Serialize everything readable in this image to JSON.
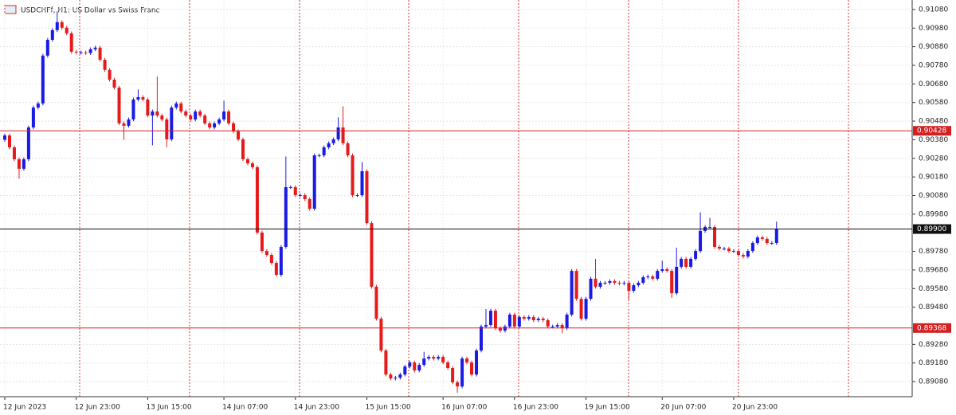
{
  "chart_data": {
    "type": "candlestick",
    "title": "USDCHFf, H1:  US Dollar vs Swiss Franc",
    "categories": [
      "12 Jun 2023",
      null,
      null,
      null,
      null,
      null,
      null,
      null,
      null,
      null,
      null,
      null,
      null,
      null,
      null,
      "12 Jun 23:00",
      null,
      null,
      null,
      null,
      null,
      null,
      null,
      null,
      null,
      null,
      null,
      null,
      null,
      null,
      "13 Jun 15:00",
      null,
      null,
      null,
      null,
      null,
      null,
      null,
      null,
      null,
      null,
      null,
      null,
      null,
      null,
      null,
      "14 Jun 07:00",
      null,
      null,
      null,
      null,
      null,
      null,
      null,
      null,
      null,
      null,
      null,
      null,
      null,
      null,
      "14 Jun 23:00",
      null,
      null,
      null,
      null,
      null,
      null,
      null,
      null,
      null,
      null,
      null,
      null,
      null,
      null,
      "15 Jun 15:00",
      null,
      null,
      null,
      null,
      null,
      null,
      null,
      null,
      null,
      null,
      null,
      null,
      null,
      null,
      null,
      "16 Jun 07:00",
      null,
      null,
      null,
      null,
      null,
      null,
      null,
      null,
      null,
      null,
      null,
      null,
      null,
      null,
      "16 Jun 23:00",
      null,
      null,
      null,
      null,
      null,
      null,
      null,
      null,
      null,
      null,
      null,
      null,
      null,
      null,
      "19 Jun 15:00",
      null,
      null,
      null,
      null,
      null,
      null,
      null,
      null,
      null,
      null,
      null,
      null,
      null,
      null,
      null,
      "20 Jun 07:00",
      null,
      null,
      null,
      null,
      null,
      null,
      null,
      null,
      null,
      null,
      null,
      null,
      null,
      null,
      "20 Jun 23:00",
      null,
      null,
      null,
      null,
      null,
      null,
      null,
      null,
      null
    ],
    "open": [
      0.9038,
      0.90403,
      0.90339,
      0.90275,
      0.90224,
      0.90275,
      0.90446,
      0.90553,
      0.90575,
      0.90832,
      0.90917,
      0.90969,
      0.91012,
      0.90982,
      0.90952,
      0.90853,
      0.90849,
      0.90849,
      0.90846,
      0.90866,
      0.90875,
      0.9081,
      0.90755,
      0.90703,
      0.9066,
      0.90468,
      0.90455,
      0.90489,
      0.90596,
      0.90609,
      0.90596,
      0.9051,
      0.90532,
      0.9051,
      0.90489,
      0.90382,
      0.90553,
      0.90575,
      0.90532,
      0.9051,
      0.90489,
      0.90532,
      0.9051,
      0.90468,
      0.90446,
      0.90468,
      0.90489,
      0.90532,
      0.90468,
      0.90425,
      0.90382,
      0.90275,
      0.90253,
      0.90232,
      0.89881,
      0.89782,
      0.89761,
      0.89718,
      0.89654,
      0.89804,
      0.90125,
      0.90125,
      0.90082,
      0.90082,
      0.90061,
      0.90009,
      0.90296,
      0.90296,
      0.90339,
      0.90361,
      0.90382,
      0.90446,
      0.90361,
      0.90296,
      0.90082,
      0.90082,
      0.90211,
      0.89932,
      0.8959,
      0.89418,
      0.89247,
      0.89118,
      0.89097,
      0.89101,
      0.89118,
      0.89161,
      0.89183,
      0.8914,
      0.8917,
      0.89204,
      0.89213,
      0.89204,
      0.89213,
      0.89183,
      0.89153,
      0.89076,
      0.89054,
      0.89204,
      0.89183,
      0.89118,
      0.89247,
      0.89376,
      0.89384,
      0.89461,
      0.89367,
      0.89354,
      0.89376,
      0.8944,
      0.89376,
      0.89427,
      0.89418,
      0.89427,
      0.8941,
      0.89418,
      0.8941,
      0.89376,
      0.89376,
      0.89384,
      0.89367,
      0.8944,
      0.89675,
      0.89525,
      0.89418,
      0.89525,
      0.89633,
      0.8959,
      0.89611,
      0.89611,
      0.8962,
      0.89611,
      0.89607,
      0.89611,
      0.89568,
      0.89598,
      0.89611,
      0.89641,
      0.89645,
      0.89633,
      0.89675,
      0.89684,
      0.89675,
      0.89555,
      0.89697,
      0.8974,
      0.89697,
      0.8974,
      0.89782,
      0.8989,
      0.89911,
      0.89911,
      0.89804,
      0.89795,
      0.89795,
      0.89782,
      0.89782,
      0.89761,
      0.89752,
      0.89782,
      0.89825,
      0.89855,
      0.89847,
      0.89825,
      0.89825
    ],
    "high": [
      0.90413,
      0.90413,
      0.90349,
      0.90285,
      0.90285,
      0.90456,
      0.90563,
      0.90585,
      0.90842,
      0.90927,
      0.90979,
      0.9107,
      0.91022,
      0.90992,
      0.90962,
      0.90863,
      0.90859,
      0.90859,
      0.90876,
      0.90885,
      0.90885,
      0.9082,
      0.90765,
      0.90713,
      0.9067,
      0.90478,
      0.90499,
      0.90606,
      0.9065,
      0.90619,
      0.90606,
      0.90542,
      0.9072,
      0.9052,
      0.90499,
      0.90563,
      0.90585,
      0.90585,
      0.90542,
      0.9052,
      0.90542,
      0.90542,
      0.9052,
      0.90478,
      0.90478,
      0.90499,
      0.9059,
      0.90542,
      0.90478,
      0.90435,
      0.90392,
      0.90285,
      0.90263,
      0.90242,
      0.89891,
      0.89792,
      0.89771,
      0.89728,
      0.89814,
      0.9029,
      0.90135,
      0.90135,
      0.90092,
      0.90092,
      0.90071,
      0.90306,
      0.90306,
      0.90349,
      0.90371,
      0.90392,
      0.905,
      0.9056,
      0.90371,
      0.90306,
      0.90092,
      0.9026,
      0.90221,
      0.89942,
      0.896,
      0.89428,
      0.89257,
      0.89128,
      0.89111,
      0.89128,
      0.89171,
      0.89193,
      0.89193,
      0.8918,
      0.8924,
      0.89223,
      0.89223,
      0.89223,
      0.89223,
      0.89193,
      0.89163,
      0.89086,
      0.89214,
      0.89214,
      0.89193,
      0.89257,
      0.89386,
      0.8947,
      0.89471,
      0.89471,
      0.89377,
      0.89386,
      0.8945,
      0.8945,
      0.89437,
      0.89437,
      0.89437,
      0.89437,
      0.89428,
      0.89428,
      0.8942,
      0.89386,
      0.89394,
      0.89394,
      0.8945,
      0.89685,
      0.89685,
      0.89535,
      0.89535,
      0.89643,
      0.8974,
      0.89621,
      0.89621,
      0.8963,
      0.8963,
      0.89621,
      0.89621,
      0.89621,
      0.89608,
      0.89621,
      0.89651,
      0.89655,
      0.89655,
      0.89685,
      0.8973,
      0.89694,
      0.89685,
      0.898,
      0.8975,
      0.8975,
      0.8975,
      0.89792,
      0.8999,
      0.89921,
      0.8996,
      0.89921,
      0.89814,
      0.89805,
      0.89805,
      0.89792,
      0.89792,
      0.89771,
      0.89792,
      0.89835,
      0.89865,
      0.89865,
      0.89857,
      0.89835,
      0.8994
    ],
    "low": [
      0.9037,
      0.90329,
      0.90265,
      0.9017,
      0.90214,
      0.90265,
      0.90436,
      0.90543,
      0.90565,
      0.90822,
      0.90907,
      0.90959,
      0.90972,
      0.90942,
      0.90843,
      0.90839,
      0.90839,
      0.90836,
      0.90836,
      0.90856,
      0.908,
      0.90745,
      0.90693,
      0.9065,
      0.90458,
      0.9038,
      0.90445,
      0.90479,
      0.90586,
      0.90586,
      0.905,
      0.9035,
      0.905,
      0.90479,
      0.9034,
      0.90372,
      0.90543,
      0.90522,
      0.905,
      0.90479,
      0.90479,
      0.905,
      0.90458,
      0.90436,
      0.90436,
      0.90458,
      0.90479,
      0.90458,
      0.90415,
      0.90372,
      0.90265,
      0.90243,
      0.90222,
      0.89871,
      0.89772,
      0.89751,
      0.89708,
      0.89644,
      0.89644,
      0.89794,
      0.90115,
      0.90072,
      0.90072,
      0.90051,
      0.89999,
      0.89999,
      0.90286,
      0.90286,
      0.90329,
      0.90351,
      0.90372,
      0.90351,
      0.90286,
      0.90072,
      0.90072,
      0.90072,
      0.89922,
      0.8958,
      0.89408,
      0.89237,
      0.89108,
      0.89087,
      0.89087,
      0.89091,
      0.89108,
      0.89151,
      0.8913,
      0.8913,
      0.8916,
      0.89194,
      0.89194,
      0.89194,
      0.89173,
      0.89143,
      0.89066,
      0.8902,
      0.89044,
      0.89173,
      0.89108,
      0.89108,
      0.89237,
      0.89366,
      0.89374,
      0.89357,
      0.89344,
      0.89344,
      0.89366,
      0.89366,
      0.89366,
      0.89408,
      0.89408,
      0.894,
      0.894,
      0.894,
      0.89366,
      0.89366,
      0.89366,
      0.8934,
      0.89357,
      0.8943,
      0.89515,
      0.89408,
      0.89408,
      0.89515,
      0.8958,
      0.8958,
      0.89601,
      0.89601,
      0.89601,
      0.89597,
      0.89597,
      0.8952,
      0.89558,
      0.89588,
      0.89601,
      0.89631,
      0.89623,
      0.89623,
      0.89665,
      0.89665,
      0.8953,
      0.89545,
      0.89687,
      0.89687,
      0.89687,
      0.8973,
      0.89772,
      0.8988,
      0.89901,
      0.89794,
      0.89785,
      0.89785,
      0.89772,
      0.89772,
      0.89751,
      0.89742,
      0.89742,
      0.89772,
      0.89815,
      0.89837,
      0.89815,
      0.89815,
      0.89815
    ],
    "close": [
      0.90403,
      0.90339,
      0.90275,
      0.90224,
      0.90275,
      0.90446,
      0.90553,
      0.90575,
      0.90832,
      0.90917,
      0.90969,
      0.91012,
      0.90982,
      0.90952,
      0.90853,
      0.90849,
      0.90849,
      0.90846,
      0.90866,
      0.90875,
      0.9081,
      0.90755,
      0.90703,
      0.9066,
      0.90468,
      0.90455,
      0.90489,
      0.90596,
      0.90609,
      0.90596,
      0.9051,
      0.90532,
      0.9051,
      0.90489,
      0.90382,
      0.90553,
      0.90575,
      0.90532,
      0.9051,
      0.90489,
      0.90532,
      0.9051,
      0.90468,
      0.90446,
      0.90468,
      0.90489,
      0.90532,
      0.90468,
      0.90425,
      0.90382,
      0.90275,
      0.90253,
      0.90232,
      0.89881,
      0.89782,
      0.89761,
      0.89718,
      0.89654,
      0.89804,
      0.90125,
      0.90125,
      0.90082,
      0.90082,
      0.90061,
      0.90009,
      0.90296,
      0.90296,
      0.90339,
      0.90361,
      0.90382,
      0.90446,
      0.90361,
      0.90296,
      0.90082,
      0.90082,
      0.90211,
      0.89932,
      0.8959,
      0.89418,
      0.89247,
      0.89118,
      0.89097,
      0.89101,
      0.89118,
      0.89161,
      0.89183,
      0.8914,
      0.8917,
      0.89204,
      0.89213,
      0.89204,
      0.89213,
      0.89183,
      0.89153,
      0.89076,
      0.89054,
      0.89204,
      0.89183,
      0.89118,
      0.89247,
      0.89376,
      0.89384,
      0.89461,
      0.89367,
      0.89354,
      0.89376,
      0.8944,
      0.89376,
      0.89427,
      0.89418,
      0.89427,
      0.8941,
      0.89418,
      0.8941,
      0.89376,
      0.89376,
      0.89384,
      0.89367,
      0.8944,
      0.89675,
      0.89525,
      0.89418,
      0.89525,
      0.89633,
      0.8959,
      0.89611,
      0.89611,
      0.8962,
      0.89611,
      0.89607,
      0.89611,
      0.89568,
      0.89598,
      0.89611,
      0.89641,
      0.89645,
      0.89633,
      0.89675,
      0.89684,
      0.89675,
      0.89555,
      0.89697,
      0.8974,
      0.89697,
      0.8974,
      0.89782,
      0.8989,
      0.89911,
      0.89911,
      0.89804,
      0.89795,
      0.89795,
      0.89782,
      0.89782,
      0.89761,
      0.89752,
      0.89782,
      0.89825,
      0.89855,
      0.89847,
      0.89825,
      0.89825,
      0.899
    ],
    "up_color": "#1a1ae6",
    "down_color": "#e61a1a",
    "ylim": [
      0.88999,
      0.91131
    ],
    "yticks": [
      {
        "value": 0.9108,
        "label": "0.91080"
      },
      {
        "value": 0.9098,
        "label": "0.90980"
      },
      {
        "value": 0.9088,
        "label": "0.90880"
      },
      {
        "value": 0.9078,
        "label": "0.90780"
      },
      {
        "value": 0.9068,
        "label": "0.90680"
      },
      {
        "value": 0.9058,
        "label": "0.90580"
      },
      {
        "value": 0.9048,
        "label": "0.90480"
      },
      {
        "value": 0.9038,
        "label": "0.90380"
      },
      {
        "value": 0.9028,
        "label": "0.90280"
      },
      {
        "value": 0.9018,
        "label": "0.90180"
      },
      {
        "value": 0.9008,
        "label": "0.90080"
      },
      {
        "value": 0.8998,
        "label": "0.89980"
      },
      {
        "value": 0.8978,
        "label": "0.89780"
      },
      {
        "value": 0.8968,
        "label": "0.89680"
      },
      {
        "value": 0.8958,
        "label": "0.89580"
      },
      {
        "value": 0.8948,
        "label": "0.89480"
      },
      {
        "value": 0.8928,
        "label": "0.89280"
      },
      {
        "value": 0.8918,
        "label": "0.89180"
      },
      {
        "value": 0.8908,
        "label": "0.89080"
      }
    ],
    "grid": true,
    "hlines": [
      {
        "value": 0.90428,
        "label": "0.90428",
        "color": "#d42020"
      },
      {
        "value": 0.899,
        "label": "0.89900",
        "color": "#111111"
      },
      {
        "value": 0.89368,
        "label": "0.89368",
        "color": "#d42020"
      }
    ]
  }
}
